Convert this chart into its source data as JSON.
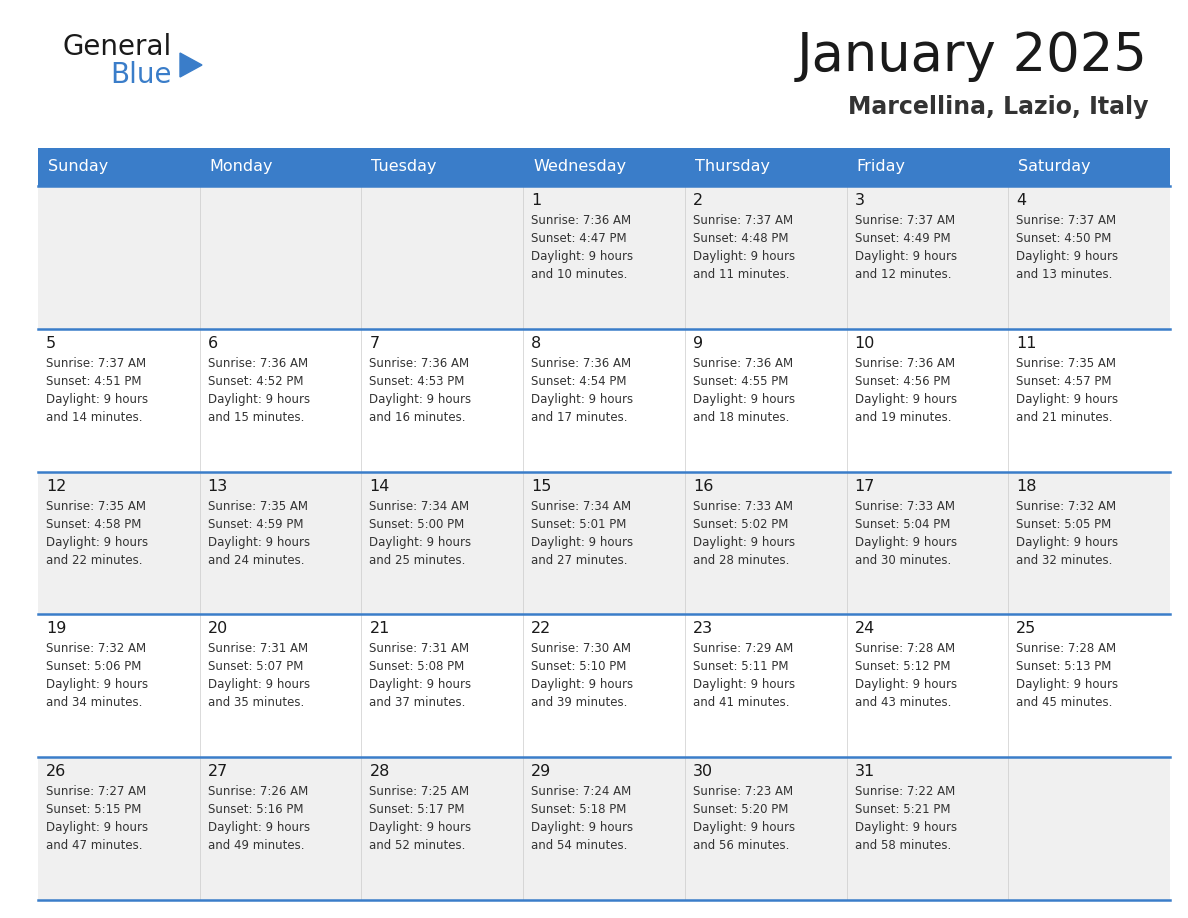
{
  "title": "January 2025",
  "subtitle": "Marcellina, Lazio, Italy",
  "days_of_week": [
    "Sunday",
    "Monday",
    "Tuesday",
    "Wednesday",
    "Thursday",
    "Friday",
    "Saturday"
  ],
  "header_bg": "#3a7dc9",
  "header_text": "#ffffff",
  "cell_bg_odd": "#f0f0f0",
  "cell_bg_even": "#ffffff",
  "separator_color": "#3a7dc9",
  "day_num_color": "#1a1a1a",
  "cell_text_color": "#333333",
  "title_color": "#1a1a1a",
  "subtitle_color": "#333333",
  "logo_general_color": "#1a1a1a",
  "logo_blue_color": "#3a7dc9",
  "logo_triangle_color": "#3a7dc9",
  "weeks": [
    [
      {
        "day": null,
        "text": ""
      },
      {
        "day": null,
        "text": ""
      },
      {
        "day": null,
        "text": ""
      },
      {
        "day": 1,
        "text": "Sunrise: 7:36 AM\nSunset: 4:47 PM\nDaylight: 9 hours\nand 10 minutes."
      },
      {
        "day": 2,
        "text": "Sunrise: 7:37 AM\nSunset: 4:48 PM\nDaylight: 9 hours\nand 11 minutes."
      },
      {
        "day": 3,
        "text": "Sunrise: 7:37 AM\nSunset: 4:49 PM\nDaylight: 9 hours\nand 12 minutes."
      },
      {
        "day": 4,
        "text": "Sunrise: 7:37 AM\nSunset: 4:50 PM\nDaylight: 9 hours\nand 13 minutes."
      }
    ],
    [
      {
        "day": 5,
        "text": "Sunrise: 7:37 AM\nSunset: 4:51 PM\nDaylight: 9 hours\nand 14 minutes."
      },
      {
        "day": 6,
        "text": "Sunrise: 7:36 AM\nSunset: 4:52 PM\nDaylight: 9 hours\nand 15 minutes."
      },
      {
        "day": 7,
        "text": "Sunrise: 7:36 AM\nSunset: 4:53 PM\nDaylight: 9 hours\nand 16 minutes."
      },
      {
        "day": 8,
        "text": "Sunrise: 7:36 AM\nSunset: 4:54 PM\nDaylight: 9 hours\nand 17 minutes."
      },
      {
        "day": 9,
        "text": "Sunrise: 7:36 AM\nSunset: 4:55 PM\nDaylight: 9 hours\nand 18 minutes."
      },
      {
        "day": 10,
        "text": "Sunrise: 7:36 AM\nSunset: 4:56 PM\nDaylight: 9 hours\nand 19 minutes."
      },
      {
        "day": 11,
        "text": "Sunrise: 7:35 AM\nSunset: 4:57 PM\nDaylight: 9 hours\nand 21 minutes."
      }
    ],
    [
      {
        "day": 12,
        "text": "Sunrise: 7:35 AM\nSunset: 4:58 PM\nDaylight: 9 hours\nand 22 minutes."
      },
      {
        "day": 13,
        "text": "Sunrise: 7:35 AM\nSunset: 4:59 PM\nDaylight: 9 hours\nand 24 minutes."
      },
      {
        "day": 14,
        "text": "Sunrise: 7:34 AM\nSunset: 5:00 PM\nDaylight: 9 hours\nand 25 minutes."
      },
      {
        "day": 15,
        "text": "Sunrise: 7:34 AM\nSunset: 5:01 PM\nDaylight: 9 hours\nand 27 minutes."
      },
      {
        "day": 16,
        "text": "Sunrise: 7:33 AM\nSunset: 5:02 PM\nDaylight: 9 hours\nand 28 minutes."
      },
      {
        "day": 17,
        "text": "Sunrise: 7:33 AM\nSunset: 5:04 PM\nDaylight: 9 hours\nand 30 minutes."
      },
      {
        "day": 18,
        "text": "Sunrise: 7:32 AM\nSunset: 5:05 PM\nDaylight: 9 hours\nand 32 minutes."
      }
    ],
    [
      {
        "day": 19,
        "text": "Sunrise: 7:32 AM\nSunset: 5:06 PM\nDaylight: 9 hours\nand 34 minutes."
      },
      {
        "day": 20,
        "text": "Sunrise: 7:31 AM\nSunset: 5:07 PM\nDaylight: 9 hours\nand 35 minutes."
      },
      {
        "day": 21,
        "text": "Sunrise: 7:31 AM\nSunset: 5:08 PM\nDaylight: 9 hours\nand 37 minutes."
      },
      {
        "day": 22,
        "text": "Sunrise: 7:30 AM\nSunset: 5:10 PM\nDaylight: 9 hours\nand 39 minutes."
      },
      {
        "day": 23,
        "text": "Sunrise: 7:29 AM\nSunset: 5:11 PM\nDaylight: 9 hours\nand 41 minutes."
      },
      {
        "day": 24,
        "text": "Sunrise: 7:28 AM\nSunset: 5:12 PM\nDaylight: 9 hours\nand 43 minutes."
      },
      {
        "day": 25,
        "text": "Sunrise: 7:28 AM\nSunset: 5:13 PM\nDaylight: 9 hours\nand 45 minutes."
      }
    ],
    [
      {
        "day": 26,
        "text": "Sunrise: 7:27 AM\nSunset: 5:15 PM\nDaylight: 9 hours\nand 47 minutes."
      },
      {
        "day": 27,
        "text": "Sunrise: 7:26 AM\nSunset: 5:16 PM\nDaylight: 9 hours\nand 49 minutes."
      },
      {
        "day": 28,
        "text": "Sunrise: 7:25 AM\nSunset: 5:17 PM\nDaylight: 9 hours\nand 52 minutes."
      },
      {
        "day": 29,
        "text": "Sunrise: 7:24 AM\nSunset: 5:18 PM\nDaylight: 9 hours\nand 54 minutes."
      },
      {
        "day": 30,
        "text": "Sunrise: 7:23 AM\nSunset: 5:20 PM\nDaylight: 9 hours\nand 56 minutes."
      },
      {
        "day": 31,
        "text": "Sunrise: 7:22 AM\nSunset: 5:21 PM\nDaylight: 9 hours\nand 58 minutes."
      },
      {
        "day": null,
        "text": ""
      }
    ]
  ]
}
